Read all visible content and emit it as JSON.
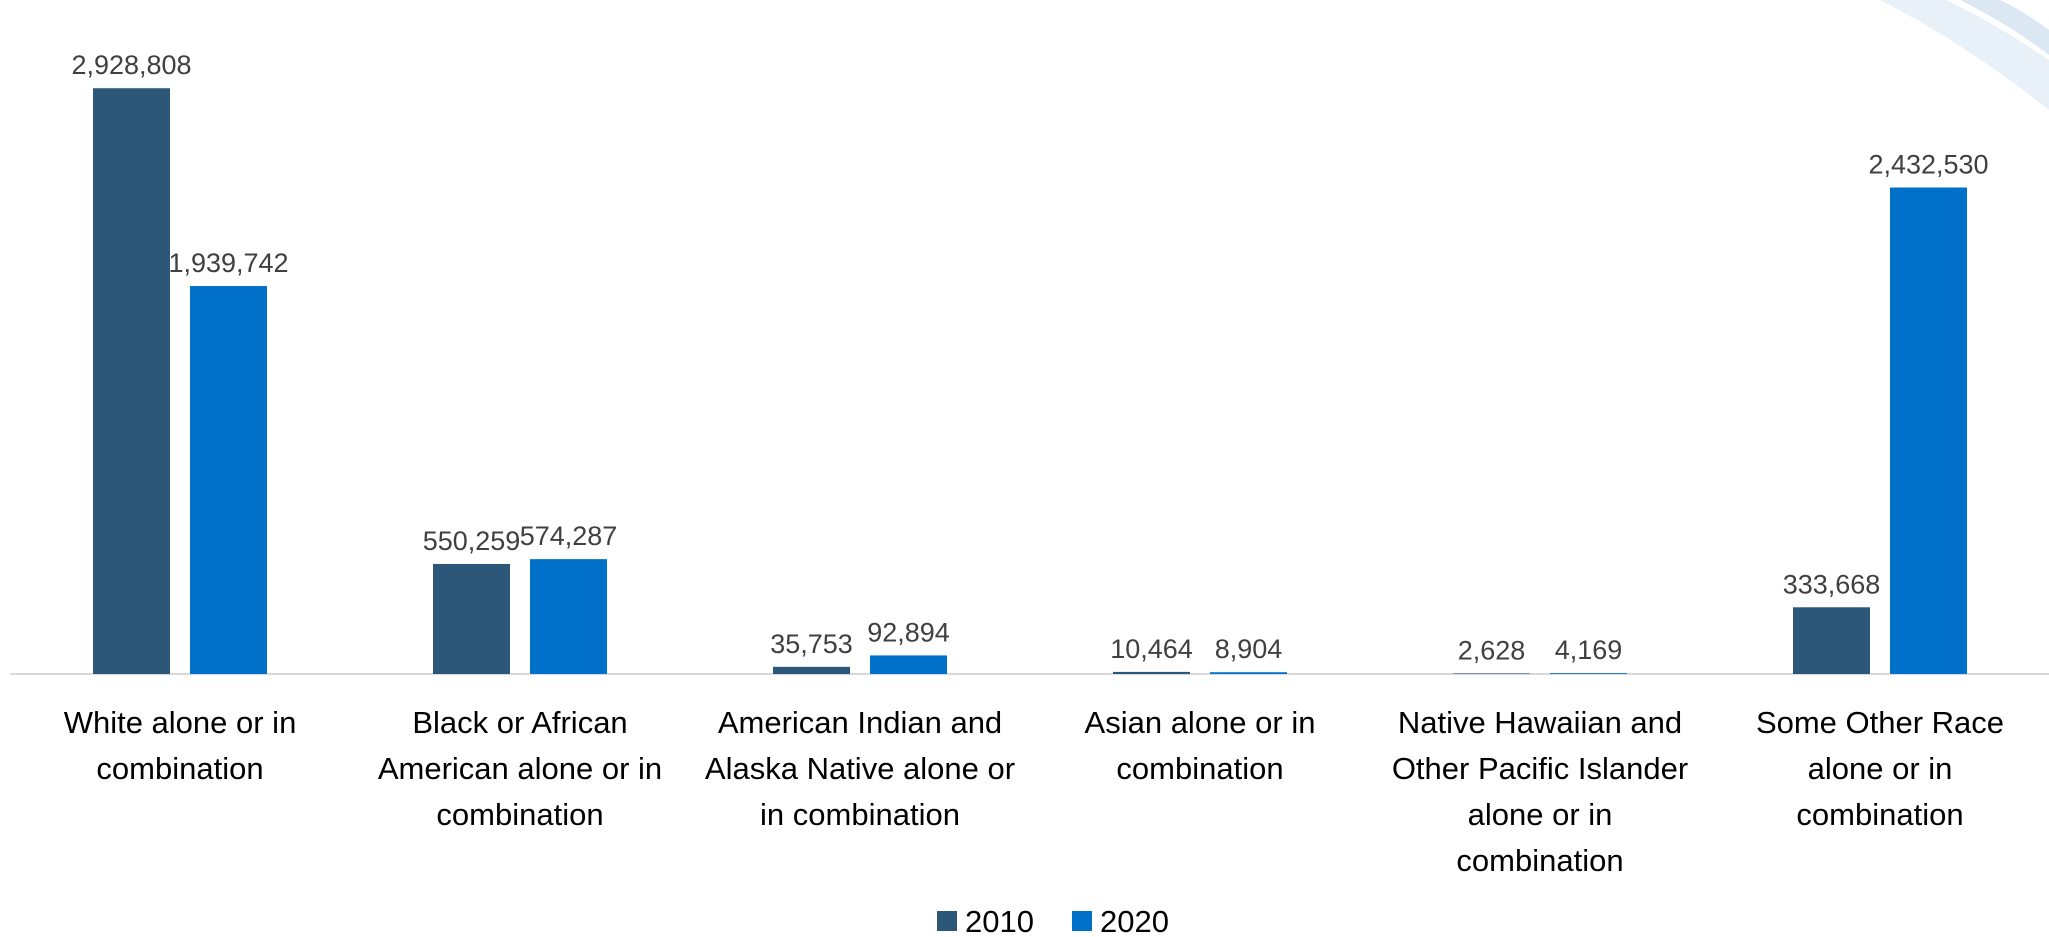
{
  "chart_data": {
    "type": "bar",
    "title": "",
    "xlabel": "",
    "ylabel": "",
    "ylim": [
      0,
      3100000
    ],
    "grid": false,
    "legend_position": "bottom",
    "categories": [
      [
        "White alone or in",
        "combination"
      ],
      [
        "Black or African",
        "American alone or in",
        "combination"
      ],
      [
        "American Indian and",
        "Alaska Native alone or",
        "in combination"
      ],
      [
        "Asian alone or in",
        "combination"
      ],
      [
        "Native Hawaiian and",
        "Other Pacific Islander",
        "alone or in",
        "combination"
      ],
      [
        "Some Other Race",
        "alone or in",
        "combination"
      ]
    ],
    "series": [
      {
        "name": "2010",
        "color": "#2C5778",
        "values": [
          2928808,
          550259,
          35753,
          10464,
          2628,
          333668
        ],
        "labels": [
          "2,928,808",
          "550,259",
          "35,753",
          "10,464",
          "2,628",
          "333,668"
        ]
      },
      {
        "name": "2020",
        "color": "#0070C9",
        "values": [
          1939742,
          574287,
          92894,
          8904,
          4169,
          2432530
        ],
        "labels": [
          "1,939,742",
          "574,287",
          "92,894",
          "8,904",
          "4,169",
          "2,432,530"
        ]
      }
    ]
  }
}
